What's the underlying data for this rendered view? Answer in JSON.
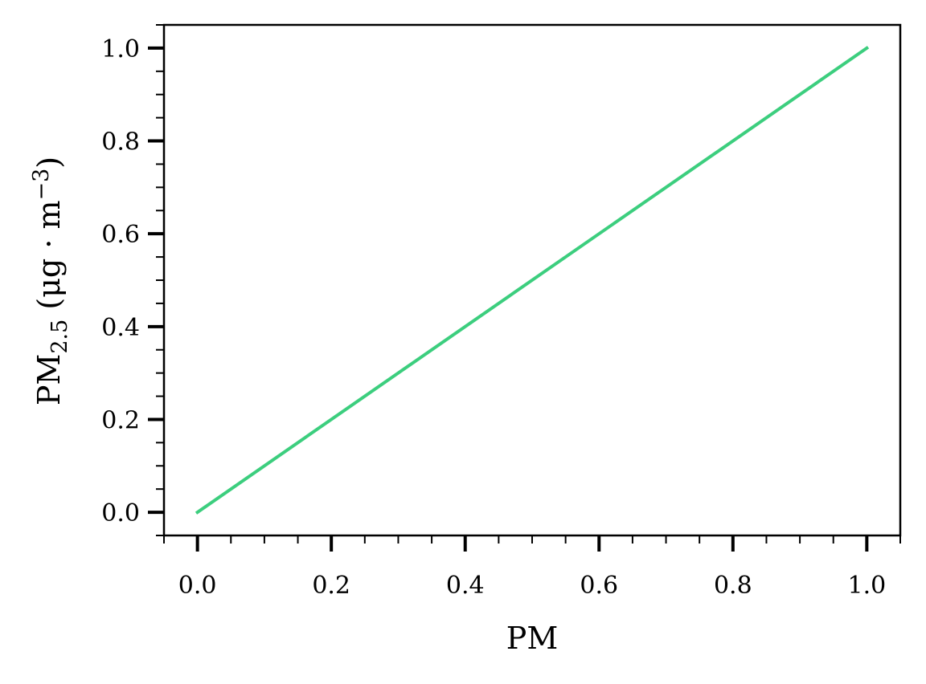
{
  "chart_data": {
    "type": "line",
    "title": "",
    "xlabel": "PM",
    "ylabel": {
      "main": "PM",
      "subscript": "2.5",
      "unit_open": " (μg · m",
      "unit_superscript": "−3",
      "unit_close": ")"
    },
    "xlim": [
      -0.05,
      1.05
    ],
    "ylim": [
      -0.05,
      1.05
    ],
    "xticks": [
      "0.0",
      "0.2",
      "0.4",
      "0.6",
      "0.8",
      "1.0"
    ],
    "yticks": [
      "0.0",
      "0.2",
      "0.4",
      "0.6",
      "0.8",
      "1.0"
    ],
    "x": [
      0.0,
      1.0
    ],
    "series": [
      {
        "values": [
          0.0,
          1.0
        ],
        "color": "#3cce7e"
      }
    ],
    "grid": false,
    "minor_ticks": true
  }
}
